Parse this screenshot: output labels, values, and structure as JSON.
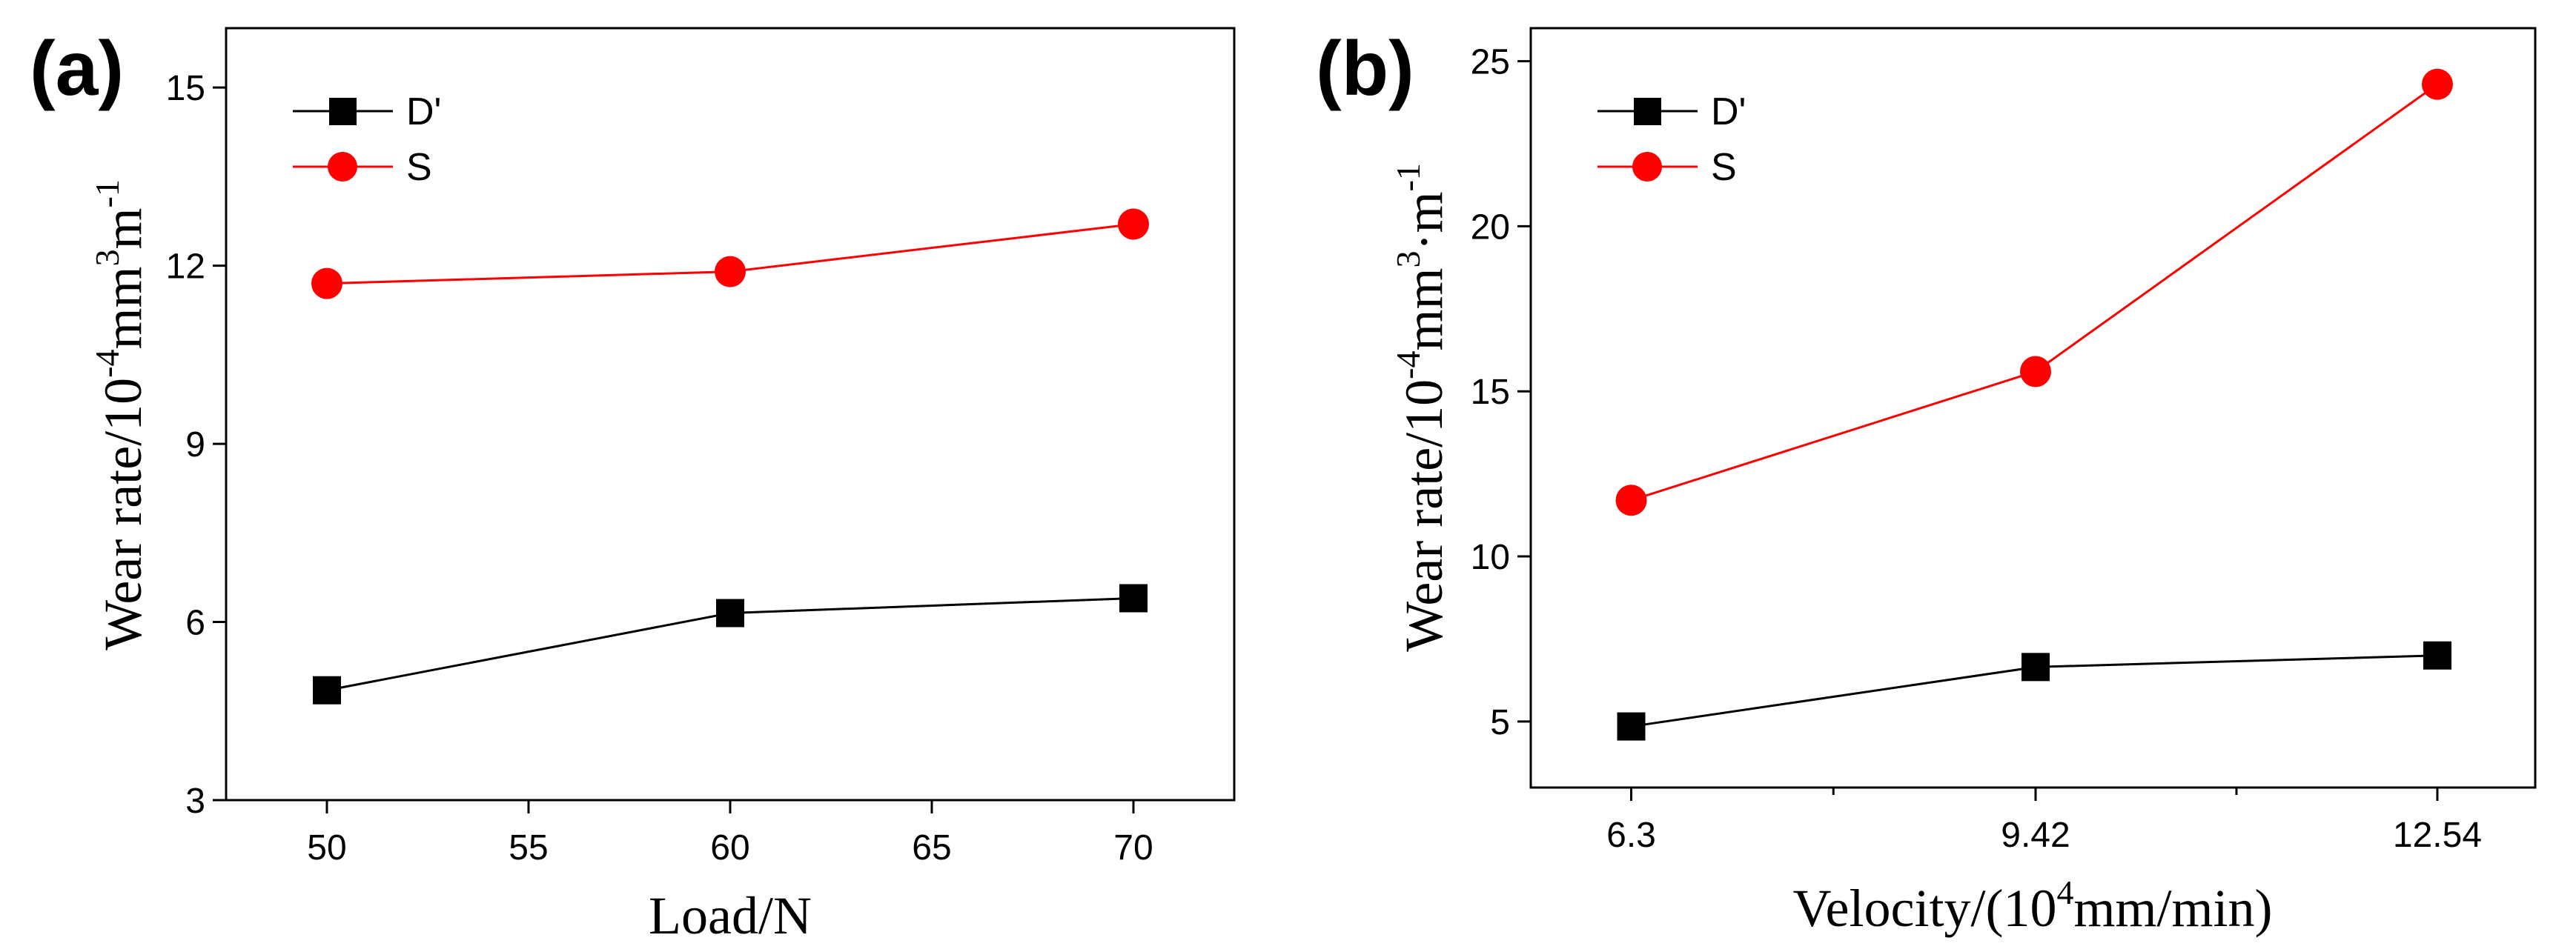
{
  "chart_data": [
    {
      "panel": "(a)",
      "type": "line",
      "x": [
        50,
        60,
        70
      ],
      "xlim": [
        47.5,
        72.5
      ],
      "xticks": [
        50,
        55,
        60,
        65,
        70
      ],
      "xtick_labels": [
        "50",
        "55",
        "60",
        "65",
        "70"
      ],
      "ylim": [
        3,
        16
      ],
      "yticks": [
        3,
        6,
        9,
        12,
        15
      ],
      "ytick_labels": [
        "3",
        "6",
        "9",
        "12",
        "15"
      ],
      "xlabel": "Load/N",
      "ylabel": {
        "base": "Wear rate/10",
        "exp1": "-4",
        "mid": "mm",
        "exp2": "3",
        "sep": "m",
        "exp3": "-1"
      },
      "legend_position": "top-left",
      "series": [
        {
          "name": "D'",
          "color": "#000000",
          "marker": "square",
          "values": [
            4.85,
            6.15,
            6.4
          ]
        },
        {
          "name": "S",
          "color": "#ff0000",
          "marker": "circle",
          "values": [
            11.7,
            11.9,
            12.7
          ]
        }
      ]
    },
    {
      "panel": "(b)",
      "type": "line",
      "x": [
        6.28,
        9.42,
        12.54
      ],
      "xlim": [
        5.5,
        13.3
      ],
      "xticks": [
        6.28,
        9.42,
        12.54
      ],
      "xtick_labels": [
        "6.3",
        "9.42",
        "12.54"
      ],
      "xminor": [
        7.85,
        10.98
      ],
      "ylim": [
        3,
        26
      ],
      "yticks": [
        5,
        10,
        15,
        20,
        25
      ],
      "ytick_labels": [
        "5",
        "10",
        "15",
        "20",
        "25"
      ],
      "xlabel": {
        "base": "Velocity/(10",
        "exp": "4",
        "rest": "mm/min)"
      },
      "ylabel": {
        "base": "Wear rate/10",
        "exp1": "-4",
        "mid": "mm",
        "exp2": "3",
        "sep": "·m",
        "exp3": "-1"
      },
      "legend_position": "top-left",
      "series": [
        {
          "name": "D'",
          "color": "#000000",
          "marker": "square",
          "values": [
            4.85,
            6.65,
            7.0
          ]
        },
        {
          "name": "S",
          "color": "#ff0000",
          "marker": "circle",
          "values": [
            11.7,
            15.6,
            24.3
          ]
        }
      ]
    }
  ]
}
